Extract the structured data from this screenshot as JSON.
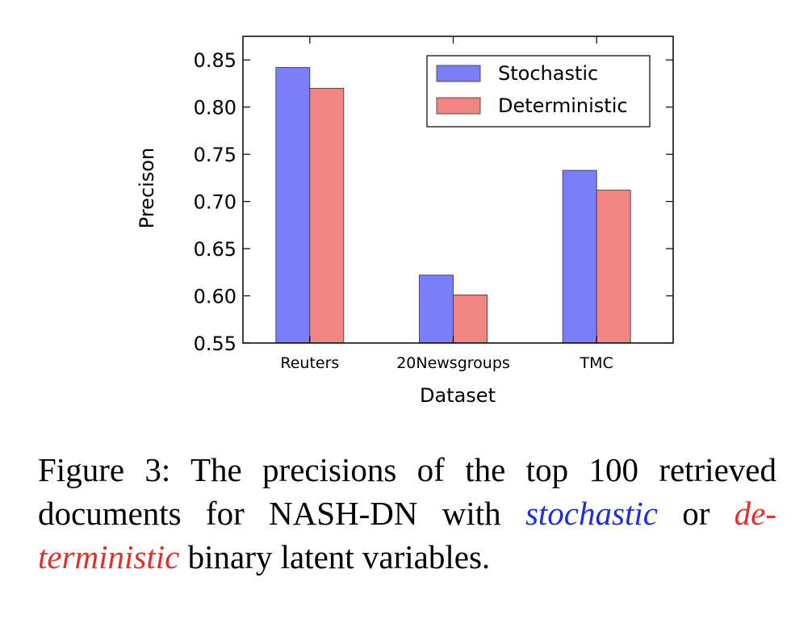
{
  "chart_data": {
    "type": "bar",
    "categories": [
      "Reuters",
      "20Newsgroups",
      "TMC"
    ],
    "series": [
      {
        "name": "Stochastic",
        "values": [
          0.842,
          0.622,
          0.733
        ],
        "color": "#7b7ff7"
      },
      {
        "name": "Deterministic",
        "values": [
          0.82,
          0.601,
          0.712
        ],
        "color": "#ef8683"
      }
    ],
    "title": "",
    "xlabel": "Dataset",
    "ylabel": "Precison",
    "ylim": [
      0.55,
      0.875
    ],
    "yticks": [
      "0.55",
      "0.60",
      "0.65",
      "0.70",
      "0.75",
      "0.80",
      "0.85"
    ],
    "grid": false,
    "legend_position": "top-right"
  },
  "caption": {
    "prefix": "Figure 3: The precisions of the top 100 retrieved documents for NASH-DN with",
    "stochastic": "stochastic",
    "or": "or",
    "deterministic_part1": "de-",
    "deterministic_part2": "terministic",
    "suffix": "binary latent variables."
  }
}
